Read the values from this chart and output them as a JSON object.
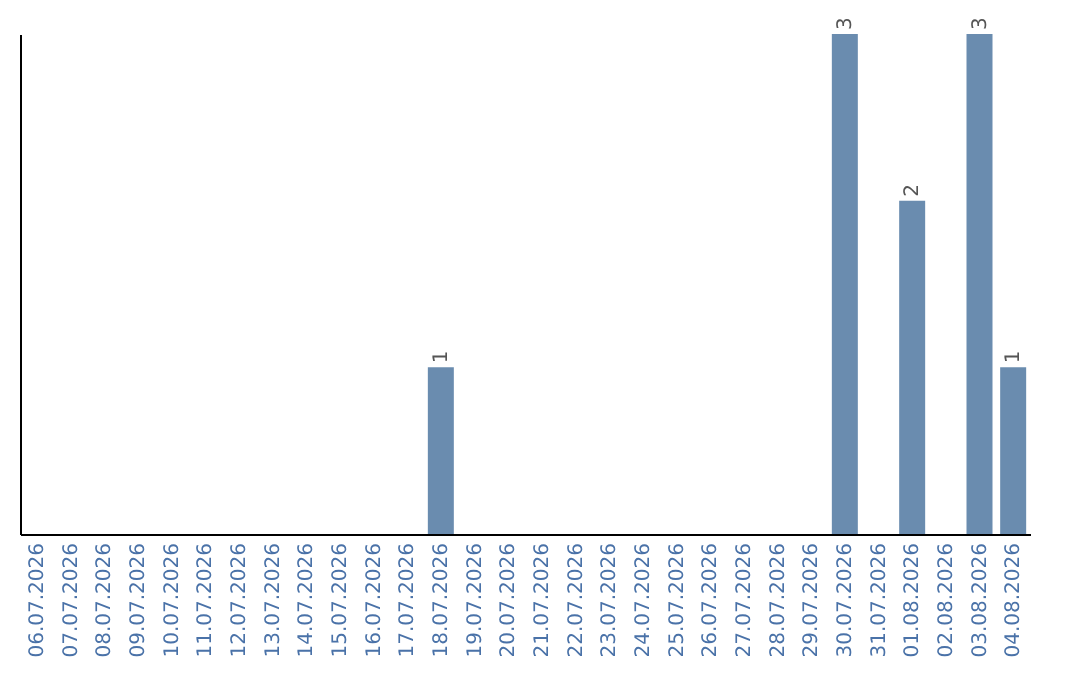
{
  "chart_data": {
    "type": "bar",
    "categories": [
      "06.07.2026",
      "07.07.2026",
      "08.07.2026",
      "09.07.2026",
      "10.07.2026",
      "11.07.2026",
      "12.07.2026",
      "13.07.2026",
      "14.07.2026",
      "15.07.2026",
      "16.07.2026",
      "17.07.2026",
      "18.07.2026",
      "19.07.2026",
      "20.07.2026",
      "21.07.2026",
      "22.07.2026",
      "23.07.2026",
      "24.07.2026",
      "25.07.2026",
      "26.07.2026",
      "27.07.2026",
      "28.07.2026",
      "29.07.2026",
      "30.07.2026",
      "31.07.2026",
      "01.08.2026",
      "02.08.2026",
      "03.08.2026",
      "04.08.2026"
    ],
    "values": [
      null,
      null,
      null,
      null,
      null,
      null,
      null,
      null,
      null,
      null,
      null,
      null,
      1,
      null,
      null,
      null,
      null,
      null,
      null,
      null,
      null,
      null,
      null,
      null,
      3,
      null,
      2,
      null,
      3,
      1
    ],
    "data_labels": true,
    "color": "#6a8caf",
    "tick_labels": "x",
    "grid": false
  }
}
